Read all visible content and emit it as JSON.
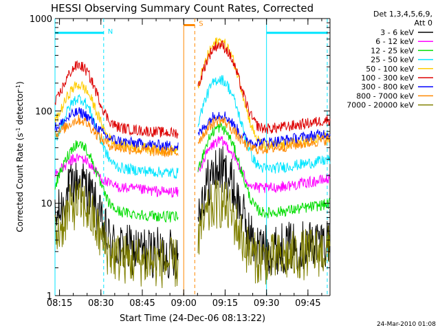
{
  "chart_data": {
    "type": "line",
    "title": "HESSI Observing Summary Count Rates, Corrected",
    "xlabel": "Start Time (24-Dec-06 08:13:22)",
    "ylabel_main": "Corrected Count Rate (s",
    "ylabel_sup1": "-1",
    "ylabel_mid": " detector",
    "ylabel_sup2": "-1",
    "ylabel_end": ")",
    "yscale": "log",
    "ylim": [
      1,
      1000
    ],
    "xlim": [
      "08:13:22",
      "09:53:00"
    ],
    "x_ticks": [
      "08:15",
      "08:30",
      "08:45",
      "09:00",
      "09:15",
      "09:30",
      "09:45"
    ],
    "y_ticks": [
      "1",
      "10",
      "100",
      "1000"
    ],
    "legend_header": [
      "Det 1,3,4,5,6,9,",
      "Att 0"
    ],
    "legend_position": "right",
    "footer": "24-Mar-2010 01:08",
    "gap_interval": [
      "09:02",
      "09:05"
    ],
    "series": [
      {
        "name": "3 - 6 keV",
        "color": "#000000",
        "noisy_floor": true,
        "base": 2.8,
        "peak1": 17,
        "peak2": 23
      },
      {
        "name": "6 - 12 keV",
        "color": "#ff00ff",
        "base": 13,
        "peak1": 31,
        "peak2": 47
      },
      {
        "name": "12 - 25 keV",
        "color": "#00dd00",
        "base": 7,
        "peak1": 44,
        "peak2": 66
      },
      {
        "name": "25 - 50 keV",
        "color": "#00e5ff",
        "base": 21,
        "peak1": 136,
        "peak2": 221
      },
      {
        "name": "50 - 100 keV",
        "color": "#ffcc00",
        "base": 37,
        "peak1": 190,
        "peak2": 570
      },
      {
        "name": "100 - 300 keV",
        "color": "#dd0000",
        "base": 57,
        "peak1": 310,
        "peak2": 520
      },
      {
        "name": "300 - 800 keV",
        "color": "#0000ff",
        "base": 41,
        "peak1": 96,
        "peak2": 92
      },
      {
        "name": "800 - 7000 keV",
        "color": "#ff8800",
        "base": 35,
        "peak1": 80,
        "peak2": 79
      },
      {
        "name": "7000 - 20000 keV",
        "color": "#808000",
        "noisy_floor": true,
        "base": 2.2,
        "peak1": 10,
        "peak2": 10
      }
    ],
    "annotations": [
      {
        "label": "N",
        "color": "#00e5ff",
        "interval": [
          "08:13:22",
          "08:31"
        ],
        "value": 700
      },
      {
        "label": "",
        "color": "#00e5ff",
        "interval": [
          "09:30",
          "09:52"
        ],
        "value": 700
      },
      {
        "label": "S",
        "color": "#ff8800",
        "interval": [
          "09:00",
          "09:04"
        ],
        "value": 850
      }
    ]
  }
}
